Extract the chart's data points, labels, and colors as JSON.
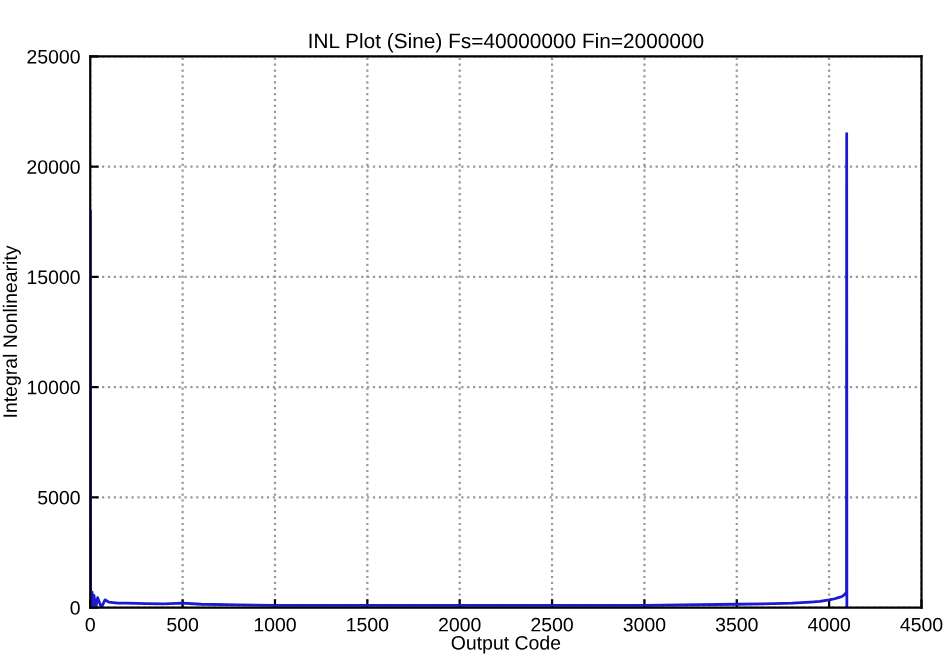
{
  "chart_data": {
    "type": "line",
    "title": "INL Plot (Sine) Fs=40000000 Fin=2000000",
    "xlabel": "Output Code",
    "ylabel": "Integral Nonlinearity",
    "series": [
      {
        "color": "#1a1ad0",
        "x": [
          0,
          1,
          2,
          5,
          10,
          15,
          20,
          30,
          40,
          60,
          80,
          100,
          150,
          200,
          300,
          400,
          500,
          600,
          800,
          1000,
          1500,
          2000,
          2500,
          3000,
          3500,
          3700,
          3800,
          3900,
          3950,
          4000,
          4030,
          4050,
          4070,
          4085,
          4094,
          4095,
          4096
        ],
        "values": [
          0,
          18000,
          800,
          0,
          700,
          0,
          550,
          0,
          450,
          0,
          350,
          250,
          200,
          200,
          180,
          170,
          200,
          150,
          120,
          100,
          100,
          100,
          100,
          100,
          150,
          180,
          200,
          250,
          280,
          350,
          400,
          450,
          500,
          600,
          700,
          21500,
          0
        ]
      }
    ],
    "xlim": [
      0,
      4500
    ],
    "ylim": [
      0,
      25000
    ],
    "xticks": [
      0,
      500,
      1000,
      1500,
      2000,
      2500,
      3000,
      3500,
      4000,
      4500
    ],
    "yticks": [
      0,
      5000,
      10000,
      15000,
      20000,
      25000
    ],
    "grid": true,
    "legend": false,
    "marker": "none",
    "line_style": "solid"
  }
}
